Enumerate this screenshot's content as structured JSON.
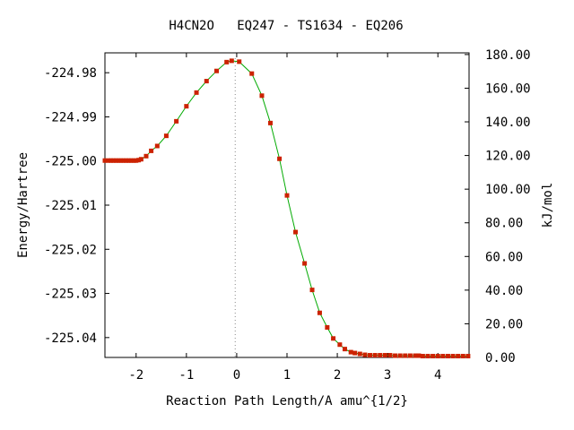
{
  "chart_data": {
    "type": "line",
    "title": "H4CN2O   EQ247 - TS1634 - EQ206",
    "xlabel": "Reaction Path Length/A amu^{1/2}",
    "ylabel": "Energy/Hartree",
    "y2label": "kJ/mol",
    "xlim": [
      -2.62,
      4.62
    ],
    "ylim": [
      -225.0445,
      -224.9755
    ],
    "y2lim": [
      0.0,
      181.0
    ],
    "grid": false,
    "legend": "none",
    "ts_marker_x": -0.03,
    "x_ticks": [
      "-2",
      "-1",
      "0",
      "1",
      "2",
      "3",
      "4"
    ],
    "x_tick_values": [
      -2,
      -1,
      0,
      1,
      2,
      3,
      4
    ],
    "y_ticks": [
      "-224.98",
      "-224.99",
      "-225.00",
      "-225.01",
      "-225.02",
      "-225.03",
      "-225.04"
    ],
    "y_tick_values": [
      -224.98,
      -224.99,
      -225.0,
      -225.01,
      -225.02,
      -225.03,
      -225.04
    ],
    "y2_ticks": [
      "180.00",
      "160.00",
      "140.00",
      "120.00",
      "100.00",
      "80.00",
      "60.00",
      "40.00",
      "20.00",
      "0.00"
    ],
    "y2_tick_values": [
      180,
      160,
      140,
      120,
      100,
      80,
      60,
      40,
      20,
      0
    ],
    "colors": {
      "curve": "#00aa00",
      "points": "#cc2200",
      "frame": "#000000",
      "ts_line": "#888888"
    },
    "series": [
      {
        "x": [
          -2.62,
          -2.55,
          -2.5,
          -2.45,
          -2.4,
          -2.35,
          -2.3,
          -2.25,
          -2.2,
          -2.15,
          -2.1,
          -2.05,
          -2.0,
          -1.95,
          -1.9,
          -1.8,
          -1.7,
          -1.58,
          -1.4,
          -1.2,
          -1.0,
          -0.8,
          -0.6,
          -0.4,
          -0.2,
          -0.1,
          0.05,
          0.3,
          0.5,
          0.67,
          0.85,
          1.0,
          1.17,
          1.35,
          1.5,
          1.65,
          1.8,
          1.92,
          2.05,
          2.15,
          2.27,
          2.35,
          2.45,
          2.55,
          2.65,
          2.75,
          2.85,
          2.95,
          3.05,
          3.15,
          3.25,
          3.35,
          3.45,
          3.55,
          3.62,
          3.7,
          3.8,
          3.9,
          4.0,
          4.1,
          4.2,
          4.3,
          4.4,
          4.5,
          4.6
        ],
        "y": [
          -224.9999,
          -224.9999,
          -224.9999,
          -224.9999,
          -224.9999,
          -224.9999,
          -224.9999,
          -224.9999,
          -224.9999,
          -224.9999,
          -224.9999,
          -224.9999,
          -224.9999,
          -224.9998,
          -224.9996,
          -224.9989,
          -224.9977,
          -224.9966,
          -224.9943,
          -224.991,
          -224.9876,
          -224.9845,
          -224.9819,
          -224.9796,
          -224.9776,
          -224.9773,
          -224.9775,
          -224.9802,
          -224.9852,
          -224.9914,
          -224.9995,
          -225.0078,
          -225.0161,
          -225.0232,
          -225.0292,
          -225.0344,
          -225.0377,
          -225.0402,
          -225.0416,
          -225.0426,
          -225.0433,
          -225.0435,
          -225.0437,
          -225.0439,
          -225.044,
          -225.044,
          -225.044,
          -225.044,
          -225.044,
          -225.0441,
          -225.0441,
          -225.0441,
          -225.0441,
          -225.0441,
          -225.0441,
          -225.0442,
          -225.0442,
          -225.0442,
          -225.0442,
          -225.0442,
          -225.0442,
          -225.0442,
          -225.0442,
          -225.0442,
          -225.0442
        ]
      }
    ]
  }
}
